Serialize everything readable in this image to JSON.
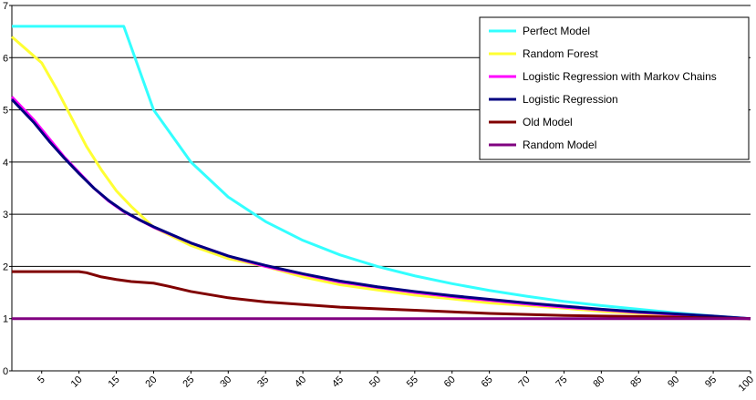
{
  "chart_data": {
    "type": "line",
    "title": "",
    "xlabel": "",
    "ylabel": "",
    "xlim": [
      1,
      100
    ],
    "ylim": [
      0,
      7
    ],
    "yticks": [
      0,
      1,
      2,
      3,
      4,
      5,
      6,
      7
    ],
    "xticks": [
      5,
      10,
      15,
      20,
      25,
      30,
      35,
      40,
      45,
      50,
      55,
      60,
      65,
      70,
      75,
      80,
      85,
      90,
      95,
      100
    ],
    "grid": "horizontal",
    "legend_position": "top-right",
    "series": [
      {
        "name": "Perfect Model",
        "color": "#33ffff",
        "x": [
          1,
          5,
          10,
          15,
          16,
          20,
          25,
          30,
          35,
          40,
          45,
          50,
          55,
          60,
          65,
          70,
          75,
          80,
          85,
          90,
          95,
          100
        ],
        "y": [
          6.6,
          6.6,
          6.6,
          6.6,
          6.6,
          5.0,
          4.0,
          3.33,
          2.86,
          2.5,
          2.22,
          2.0,
          1.82,
          1.67,
          1.54,
          1.43,
          1.33,
          1.25,
          1.18,
          1.11,
          1.05,
          1.0
        ]
      },
      {
        "name": "Random Forest",
        "color": "#ffff33",
        "x": [
          1,
          3,
          5,
          7,
          9,
          11,
          13,
          15,
          17,
          20,
          25,
          30,
          35,
          40,
          45,
          50,
          55,
          60,
          65,
          70,
          75,
          80,
          85,
          90,
          95,
          100
        ],
        "y": [
          6.4,
          6.15,
          5.9,
          5.4,
          4.85,
          4.3,
          3.85,
          3.45,
          3.15,
          2.75,
          2.4,
          2.15,
          2.0,
          1.8,
          1.65,
          1.55,
          1.45,
          1.38,
          1.3,
          1.25,
          1.2,
          1.14,
          1.1,
          1.07,
          1.03,
          1.0
        ]
      },
      {
        "name": "Logistic Regression with Markov Chains",
        "color": "#ff00ff",
        "x": [
          1,
          2,
          4,
          6,
          8,
          10,
          12,
          14,
          16,
          18,
          20,
          25,
          30,
          35,
          40,
          45,
          50,
          55,
          60,
          65,
          70,
          75,
          80,
          85,
          90,
          95,
          100
        ],
        "y": [
          5.25,
          5.1,
          4.8,
          4.45,
          4.1,
          3.8,
          3.5,
          3.25,
          3.05,
          2.9,
          2.75,
          2.45,
          2.2,
          2.0,
          1.85,
          1.7,
          1.6,
          1.5,
          1.42,
          1.35,
          1.28,
          1.22,
          1.17,
          1.12,
          1.08,
          1.04,
          1.0
        ]
      },
      {
        "name": "Logistic Regression",
        "color": "#000080",
        "x": [
          1,
          2,
          4,
          6,
          8,
          10,
          12,
          14,
          16,
          18,
          20,
          25,
          30,
          35,
          40,
          45,
          50,
          55,
          60,
          65,
          70,
          75,
          80,
          85,
          90,
          95,
          100
        ],
        "y": [
          5.2,
          5.05,
          4.75,
          4.4,
          4.08,
          3.78,
          3.5,
          3.26,
          3.06,
          2.9,
          2.76,
          2.45,
          2.2,
          2.02,
          1.86,
          1.72,
          1.61,
          1.52,
          1.44,
          1.37,
          1.3,
          1.24,
          1.18,
          1.13,
          1.09,
          1.05,
          1.0
        ]
      },
      {
        "name": "Old Model",
        "color": "#800000",
        "x": [
          1,
          5,
          10,
          11,
          13,
          15,
          17,
          20,
          22,
          25,
          30,
          35,
          40,
          45,
          50,
          55,
          60,
          65,
          70,
          75,
          80,
          85,
          90,
          95,
          100
        ],
        "y": [
          1.9,
          1.9,
          1.9,
          1.88,
          1.8,
          1.75,
          1.71,
          1.68,
          1.62,
          1.52,
          1.4,
          1.32,
          1.27,
          1.22,
          1.19,
          1.16,
          1.13,
          1.1,
          1.08,
          1.06,
          1.05,
          1.04,
          1.03,
          1.01,
          1.0
        ]
      },
      {
        "name": "Random Model",
        "color": "#800080",
        "x": [
          1,
          100
        ],
        "y": [
          1.0,
          1.0
        ]
      }
    ]
  }
}
